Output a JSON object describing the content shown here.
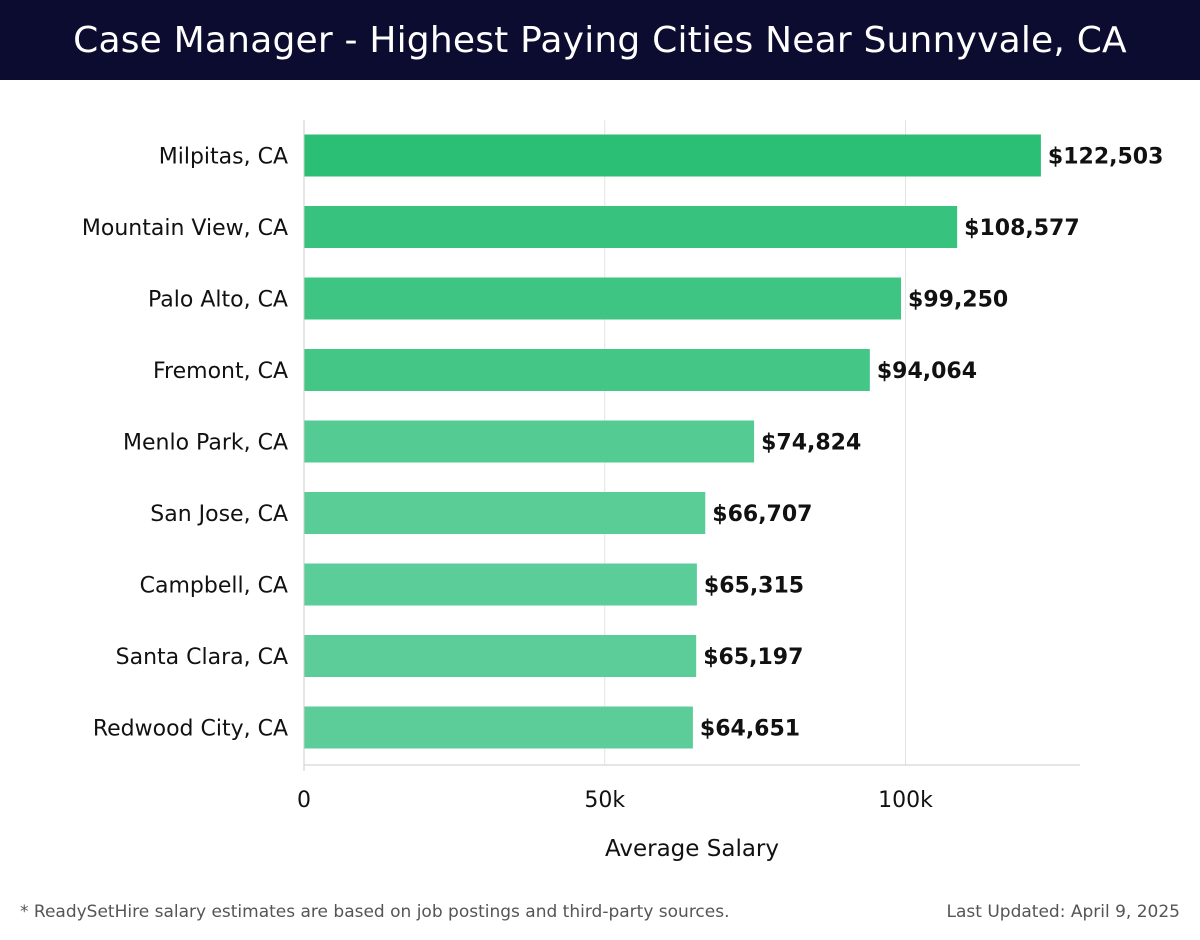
{
  "header": {
    "title": "Case Manager - Highest Paying Cities Near Sunnyvale, CA"
  },
  "chart_data": {
    "type": "bar",
    "orientation": "horizontal",
    "title": "Case Manager - Highest Paying Cities Near Sunnyvale, CA",
    "xlabel": "Average Salary",
    "ylabel": "",
    "xlim": [
      0,
      129000
    ],
    "xticks": [
      0,
      50000,
      100000
    ],
    "xtick_labels": [
      "0",
      "50k",
      "100k"
    ],
    "grid": true,
    "categories": [
      "Milpitas, CA",
      "Mountain View, CA",
      "Palo Alto, CA",
      "Fremont, CA",
      "Menlo Park, CA",
      "San Jose, CA",
      "Campbell, CA",
      "Santa Clara, CA",
      "Redwood City, CA"
    ],
    "values": [
      122503,
      108577,
      99250,
      94064,
      74824,
      66707,
      65315,
      65197,
      64651
    ],
    "value_labels": [
      "$122,503",
      "$108,577",
      "$99,250",
      "$94,064",
      "$74,824",
      "$66,707",
      "$65,315",
      "$65,197",
      "$64,651"
    ],
    "colors": {
      "bar_max": "#2bbf75",
      "bar_min": "#5ccd98",
      "grid": "#e3e3e3",
      "axis": "#cccccc"
    }
  },
  "footer": {
    "note": "* ReadySetHire salary estimates are based on job postings and third-party sources.",
    "updated": "Last Updated: April 9, 2025"
  }
}
